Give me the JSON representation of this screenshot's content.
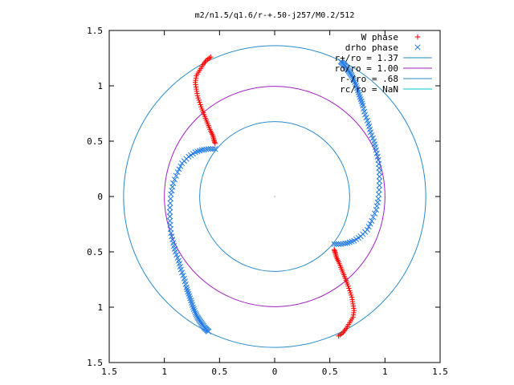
{
  "chart_data": {
    "type": "scatter",
    "title": "m2/n1.5/q1.6/r-+.50-j257/M0.2/512",
    "xlabel": "",
    "ylabel": "",
    "xlim": [
      -1.5,
      1.5
    ],
    "ylim": [
      -1.5,
      1.5
    ],
    "xticks": [
      -1.5,
      -1,
      -0.5,
      0,
      0.5,
      1,
      1.5
    ],
    "xtick_labels": [
      "1.5",
      "1",
      "0.5",
      "0",
      "0.5",
      "1",
      "1.5"
    ],
    "yticks": [
      -1.5,
      -1,
      -0.5,
      0,
      0.5,
      1,
      1.5
    ],
    "ytick_labels": [
      "1.5",
      "1",
      "0.5",
      "0",
      "0.5",
      "1",
      "1.5"
    ],
    "grid": false,
    "legend_position": "top-right",
    "colors": {
      "w_phase": "#ff0000",
      "drho_phase": "#1e78e6",
      "r_plus": "#2a8ac9",
      "ro": "#a020c0",
      "r_minus": "#2a8ac9",
      "rc": "#00c8c8"
    },
    "series": [
      {
        "name": "W phase",
        "kind": "points",
        "marker": "plus",
        "color": "#ff0000",
        "branches": [
          {
            "x": [
              -0.58,
              -0.62,
              -0.65,
              -0.68,
              -0.71,
              -0.72,
              -0.71,
              -0.7,
              -0.68,
              -0.66,
              -0.64,
              -0.62,
              -0.6,
              -0.58,
              -0.56,
              -0.55,
              -0.54
            ],
            "y": [
              1.26,
              1.23,
              1.19,
              1.14,
              1.09,
              1.03,
              0.97,
              0.91,
              0.85,
              0.79,
              0.74,
              0.69,
              0.64,
              0.59,
              0.55,
              0.51,
              0.48
            ]
          },
          {
            "x": [
              0.58,
              0.62,
              0.65,
              0.68,
              0.71,
              0.72,
              0.71,
              0.7,
              0.68,
              0.66,
              0.64,
              0.62,
              0.6,
              0.58,
              0.56,
              0.55,
              0.54
            ],
            "y": [
              -1.26,
              -1.23,
              -1.19,
              -1.14,
              -1.09,
              -1.03,
              -0.97,
              -0.91,
              -0.85,
              -0.79,
              -0.74,
              -0.69,
              -0.64,
              -0.59,
              -0.55,
              -0.51,
              -0.48
            ]
          }
        ]
      },
      {
        "name": "drho phase",
        "kind": "points",
        "marker": "cross",
        "color": "#1e78e6",
        "branches": [
          {
            "x": [
              -0.54,
              -0.6,
              -0.66,
              -0.72,
              -0.78,
              -0.84,
              -0.88,
              -0.92,
              -0.94,
              -0.95,
              -0.95,
              -0.94,
              -0.92,
              -0.9,
              -0.87,
              -0.85,
              -0.82,
              -0.8,
              -0.78,
              -0.76,
              -0.74,
              -0.72,
              -0.7,
              -0.68,
              -0.66,
              -0.64,
              -0.62,
              -0.6
            ],
            "y": [
              0.43,
              0.43,
              0.42,
              0.4,
              0.36,
              0.3,
              0.22,
              0.12,
              0.02,
              -0.1,
              -0.22,
              -0.33,
              -0.42,
              -0.5,
              -0.58,
              -0.66,
              -0.74,
              -0.82,
              -0.88,
              -0.94,
              -1.0,
              -1.05,
              -1.09,
              -1.12,
              -1.15,
              -1.18,
              -1.2,
              -1.22
            ]
          },
          {
            "x": [
              0.54,
              0.6,
              0.66,
              0.72,
              0.78,
              0.84,
              0.88,
              0.92,
              0.94,
              0.95,
              0.95,
              0.94,
              0.92,
              0.9,
              0.87,
              0.85,
              0.82,
              0.8,
              0.78,
              0.76,
              0.74,
              0.72,
              0.7,
              0.68,
              0.66,
              0.64,
              0.62,
              0.6
            ],
            "y": [
              -0.43,
              -0.43,
              -0.42,
              -0.4,
              -0.36,
              -0.3,
              -0.22,
              -0.12,
              -0.02,
              0.1,
              0.22,
              0.33,
              0.42,
              0.5,
              0.58,
              0.66,
              0.74,
              0.82,
              0.88,
              0.94,
              1.0,
              1.05,
              1.09,
              1.12,
              1.15,
              1.18,
              1.2,
              1.22
            ]
          }
        ]
      },
      {
        "name": "r+/ro = 1.37",
        "kind": "circle",
        "radius": 1.37,
        "color": "#2a8ac9"
      },
      {
        "name": "ro/ro = 1.00",
        "kind": "circle",
        "radius": 1.0,
        "color": "#a020c0"
      },
      {
        "name": "r-/ro = .68",
        "kind": "circle",
        "radius": 0.68,
        "color": "#2a8ac9"
      },
      {
        "name": "rc/ro = NaN",
        "kind": "circle",
        "radius": null,
        "color": "#00c8c8"
      }
    ]
  }
}
